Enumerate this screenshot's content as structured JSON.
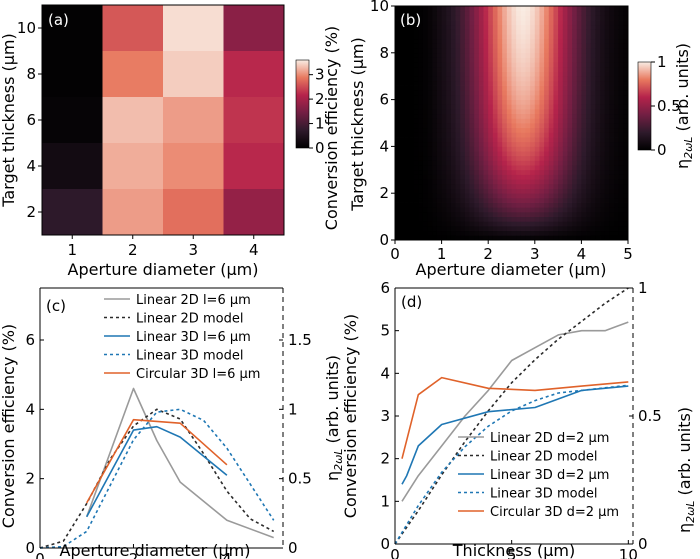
{
  "colors": {
    "gray": "#9a9a9a",
    "dark": "#2b2b2b",
    "blue": "#1f77b4",
    "orange": "#e0622a",
    "axis": "#000000"
  },
  "chart_data": [
    {
      "panel": "(a)",
      "type": "heatmap",
      "xlabel": "Aperture diameter (μm)",
      "ylabel": "Target thickness (μm)",
      "x_categories": [
        "1",
        "2",
        "3",
        "4"
      ],
      "y_categories": [
        "2",
        "4",
        "6",
        "8",
        "10"
      ],
      "values_by_row_top_to_bottom": [
        [
          0.05,
          2.6,
          3.5,
          1.7
        ],
        [
          0.05,
          2.9,
          3.4,
          2.2
        ],
        [
          0.1,
          3.3,
          3.1,
          2.3
        ],
        [
          0.3,
          3.2,
          3.0,
          2.2
        ],
        [
          0.7,
          3.1,
          2.8,
          1.8
        ]
      ],
      "colorbar": {
        "label": "Conversion efficiency (%)",
        "ticks": [
          "0",
          "1",
          "2",
          "3"
        ],
        "range": [
          0,
          3.6
        ]
      }
    },
    {
      "panel": "(b)",
      "type": "heatmap",
      "xlabel": "Aperture diameter (μm)",
      "ylabel": "Target thickness (μm)",
      "xlim": [
        0,
        5
      ],
      "ylim": [
        0,
        10
      ],
      "xticks": [
        "0",
        "1",
        "2",
        "3",
        "4",
        "5"
      ],
      "yticks": [
        "0",
        "2",
        "4",
        "6",
        "8",
        "10"
      ],
      "model": "normalized SHG efficiency, maximum near aperture 2.7 μm and thickness 10 μm",
      "colorbar": {
        "label": "η2ωL (arb. units)",
        "ticks": [
          "0",
          "0.5",
          "1"
        ],
        "range": [
          0,
          1
        ]
      }
    },
    {
      "panel": "(c)",
      "type": "line",
      "xlabel": "Aperture diameter (μm)",
      "ylabel": "Conversion efficiency (%)",
      "y2label": "η2ωL (arb. units)",
      "xlim": [
        0,
        5.2
      ],
      "ylim": [
        0,
        7.5
      ],
      "y2lim": [
        0,
        1.875
      ],
      "xticks": [
        "0",
        "2",
        "4"
      ],
      "yticks": [
        "0",
        "2",
        "4",
        "6"
      ],
      "y2ticks": [
        "0",
        "0.5",
        "1",
        "1.5"
      ],
      "series": [
        {
          "name": "Linear 2D l=6 μm",
          "axis": "left",
          "style": "solid",
          "color": "#9a9a9a",
          "x": [
            1,
            2,
            2.5,
            3,
            4,
            5
          ],
          "y": [
            0.9,
            4.6,
            3.1,
            1.9,
            0.8,
            0.3
          ]
        },
        {
          "name": "Linear 2D model",
          "axis": "right",
          "style": "dotted",
          "color": "#2b2b2b",
          "x": [
            0,
            0.5,
            1,
            1.5,
            2,
            2.5,
            3,
            3.5,
            4,
            4.5,
            5
          ],
          "y": [
            0,
            0.05,
            0.32,
            0.64,
            0.88,
            1.0,
            0.93,
            0.68,
            0.41,
            0.21,
            0.12
          ]
        },
        {
          "name": "Linear 3D l=6 μm",
          "axis": "left",
          "style": "solid",
          "color": "#1f77b4",
          "x": [
            1,
            2,
            2.5,
            3,
            4
          ],
          "y": [
            0.9,
            3.4,
            3.5,
            3.2,
            2.1
          ]
        },
        {
          "name": "Linear 3D model",
          "axis": "right",
          "style": "dotted",
          "color": "#1f77b4",
          "x": [
            0,
            0.5,
            1,
            1.5,
            2,
            2.5,
            3,
            3.5,
            4,
            4.5,
            5
          ],
          "y": [
            0,
            0.01,
            0.12,
            0.45,
            0.78,
            0.98,
            1.0,
            0.92,
            0.72,
            0.46,
            0.2
          ]
        },
        {
          "name": "Circular 3D l=6 μm",
          "axis": "left",
          "style": "solid",
          "color": "#e0622a",
          "x": [
            1,
            2,
            3,
            4
          ],
          "y": [
            1.3,
            3.7,
            3.6,
            2.4
          ]
        }
      ]
    },
    {
      "panel": "(d)",
      "type": "line",
      "xlabel": "Thickness (μm)",
      "ylabel": "Conversion efficiency (%)",
      "y2label": "η2ωL (arb. units)",
      "xlim": [
        0,
        10.2
      ],
      "ylim": [
        0,
        6
      ],
      "y2lim": [
        0,
        1
      ],
      "xticks": [
        "0",
        "5",
        "10"
      ],
      "yticks": [
        "0",
        "1",
        "2",
        "3",
        "4",
        "5",
        "6"
      ],
      "y2ticks": [
        "0",
        "0.5",
        "1"
      ],
      "series": [
        {
          "name": "Linear 2D d=2 μm",
          "axis": "left",
          "style": "solid",
          "color": "#9a9a9a",
          "x": [
            0.3,
            1,
            2,
            3,
            4,
            5,
            6,
            7,
            8,
            9,
            9.5,
            10
          ],
          "y": [
            1.0,
            1.6,
            2.3,
            3.0,
            3.6,
            4.3,
            4.6,
            4.9,
            5.0,
            5.0,
            5.1,
            5.2
          ]
        },
        {
          "name": "Linear 2D model",
          "axis": "right",
          "style": "dotted",
          "color": "#2b2b2b",
          "x": [
            0,
            1,
            2,
            3,
            4,
            5,
            6,
            7,
            8,
            9,
            10
          ],
          "y": [
            0,
            0.13,
            0.27,
            0.4,
            0.52,
            0.63,
            0.72,
            0.8,
            0.87,
            0.94,
            1.0
          ]
        },
        {
          "name": "Linear 3D d=2 μm",
          "axis": "left",
          "style": "solid",
          "color": "#1f77b4",
          "x": [
            0.3,
            0.5,
            1,
            2,
            4,
            6,
            8,
            10
          ],
          "y": [
            1.4,
            1.6,
            2.3,
            2.8,
            3.1,
            3.2,
            3.6,
            3.7
          ]
        },
        {
          "name": "Linear 3D model",
          "axis": "right",
          "style": "dotted",
          "color": "#1f77b4",
          "x": [
            0,
            1,
            2,
            3,
            4,
            5,
            6,
            7,
            8,
            9,
            10
          ],
          "y": [
            0,
            0.15,
            0.28,
            0.38,
            0.46,
            0.52,
            0.56,
            0.59,
            0.6,
            0.61,
            0.62
          ]
        },
        {
          "name": "Circular 3D d=2 μm",
          "axis": "left",
          "style": "solid",
          "color": "#e0622a",
          "x": [
            0.3,
            1,
            2,
            4,
            6,
            8,
            10
          ],
          "y": [
            2.0,
            3.5,
            3.9,
            3.65,
            3.6,
            3.7,
            3.8
          ]
        }
      ]
    }
  ]
}
